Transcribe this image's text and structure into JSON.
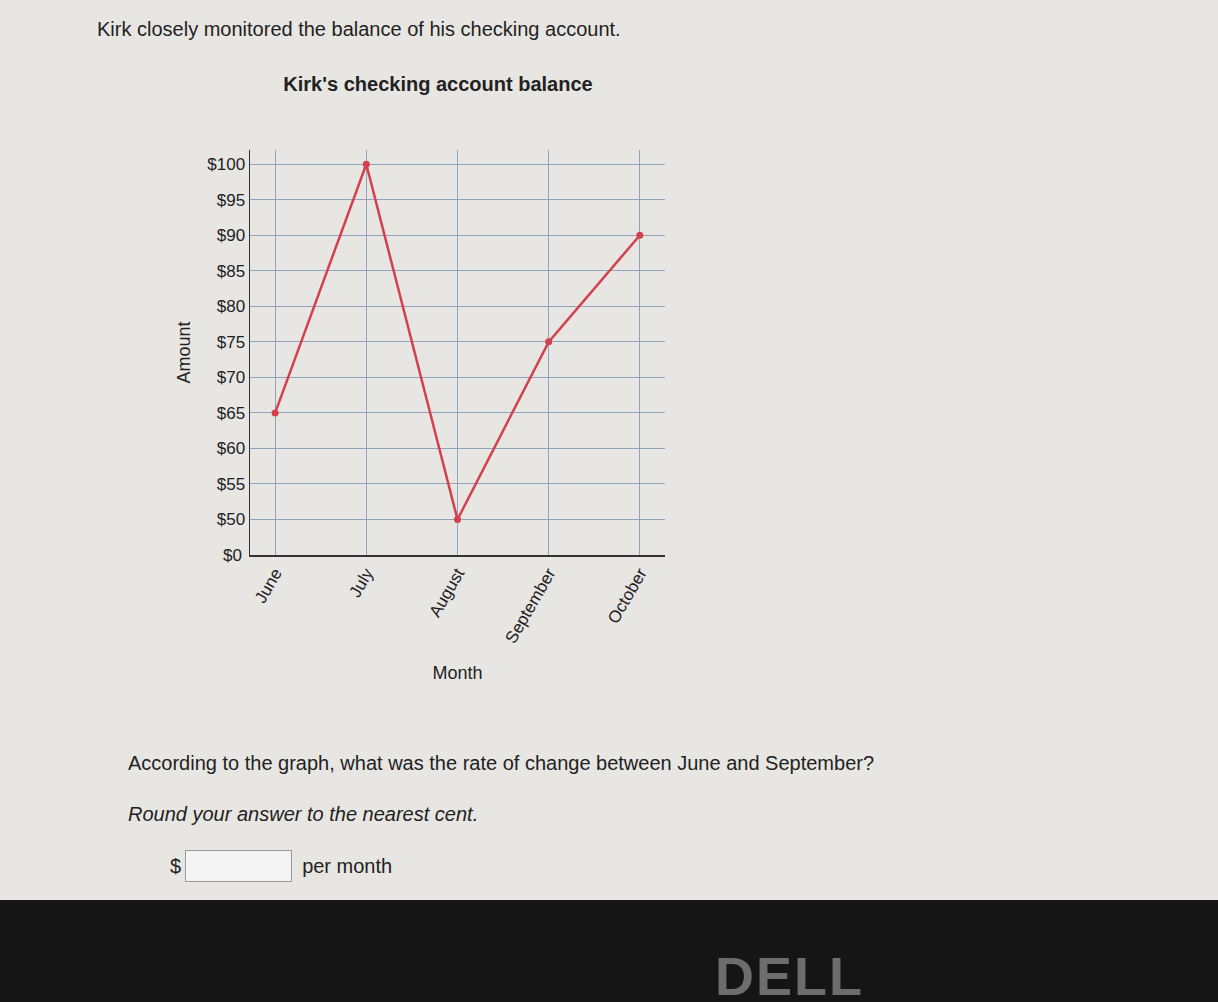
{
  "header": {
    "intro": "Kirk closely monitored the balance of his checking account."
  },
  "chart_data": {
    "type": "line",
    "title": "Kirk's checking account balance",
    "x_label": "Month",
    "y_label": "Amount",
    "categories": [
      "June",
      "July",
      "August",
      "September",
      "October"
    ],
    "values": [
      65,
      100,
      50,
      75,
      90
    ],
    "color": "#d2414c",
    "marker": "circle",
    "ylim": [
      45,
      102
    ],
    "yticks": [
      {
        "value": 50,
        "label": "$50"
      },
      {
        "value": 55,
        "label": "$55"
      },
      {
        "value": 60,
        "label": "$60"
      },
      {
        "value": 65,
        "label": "$65"
      },
      {
        "value": 70,
        "label": "$70"
      },
      {
        "value": 75,
        "label": "$75"
      },
      {
        "value": 80,
        "label": "$80"
      },
      {
        "value": 85,
        "label": "$85"
      },
      {
        "value": 90,
        "label": "$90"
      },
      {
        "value": 95,
        "label": "$95"
      },
      {
        "value": 100,
        "label": "$100"
      }
    ],
    "axis_break_label": "$0",
    "grid": true
  },
  "question": {
    "text": "According to the graph, what was the rate of change between June and September?",
    "instruction": "Round your answer to the nearest cent.",
    "answer_prefix": "$",
    "answer_suffix": "per month"
  },
  "footer": {
    "brand": "DELL"
  }
}
